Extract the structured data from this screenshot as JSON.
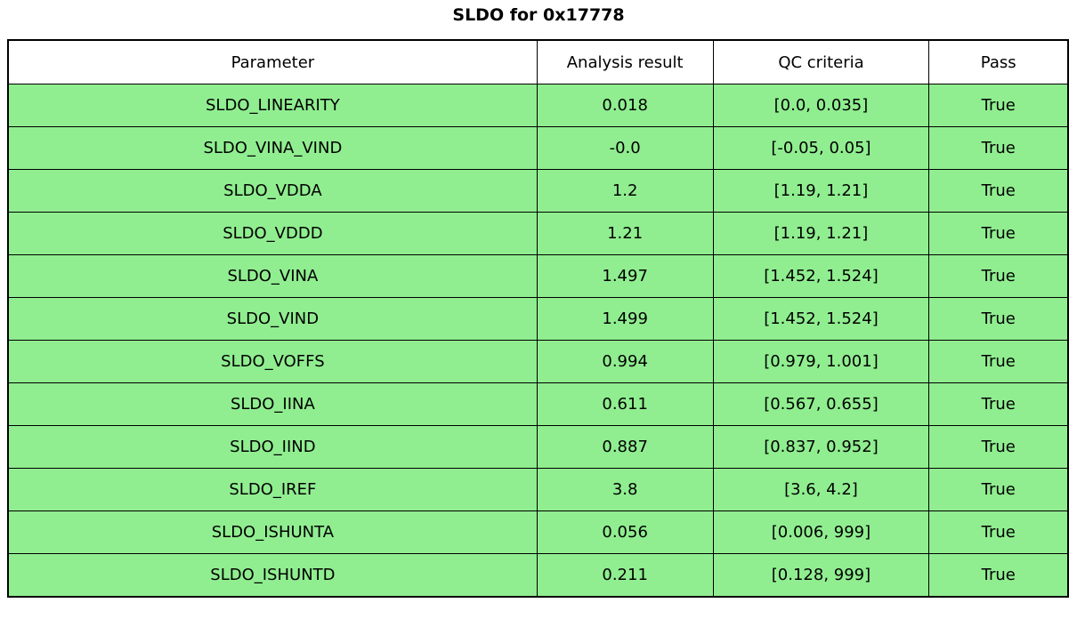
{
  "title": "SLDO for 0x17778",
  "colors": {
    "pass_row": "#90ee90",
    "header_bg": "#ffffff",
    "border": "#000000",
    "text": "#000000"
  },
  "chart_data": {
    "type": "table",
    "title": "SLDO for 0x17778",
    "columns": [
      "Parameter",
      "Analysis result",
      "QC criteria",
      "Pass"
    ],
    "rows": [
      [
        "SLDO_LINEARITY",
        "0.018",
        "[0.0, 0.035]",
        "True"
      ],
      [
        "SLDO_VINA_VIND",
        "-0.0",
        "[-0.05, 0.05]",
        "True"
      ],
      [
        "SLDO_VDDA",
        "1.2",
        "[1.19, 1.21]",
        "True"
      ],
      [
        "SLDO_VDDD",
        "1.21",
        "[1.19, 1.21]",
        "True"
      ],
      [
        "SLDO_VINA",
        "1.497",
        "[1.452, 1.524]",
        "True"
      ],
      [
        "SLDO_VIND",
        "1.499",
        "[1.452, 1.524]",
        "True"
      ],
      [
        "SLDO_VOFFS",
        "0.994",
        "[0.979, 1.001]",
        "True"
      ],
      [
        "SLDO_IINA",
        "0.611",
        "[0.567, 0.655]",
        "True"
      ],
      [
        "SLDO_IIND",
        "0.887",
        "[0.837, 0.952]",
        "True"
      ],
      [
        "SLDO_IREF",
        "3.8",
        "[3.6, 4.2]",
        "True"
      ],
      [
        "SLDO_ISHUNTA",
        "0.056",
        "[0.006, 999]",
        "True"
      ],
      [
        "SLDO_ISHUNTD",
        "0.211",
        "[0.128, 999]",
        "True"
      ]
    ],
    "row_status": [
      "pass",
      "pass",
      "pass",
      "pass",
      "pass",
      "pass",
      "pass",
      "pass",
      "pass",
      "pass",
      "pass",
      "pass"
    ],
    "layout": {
      "all_cells_centered": true,
      "header_background": "white",
      "pass_row_background": "lightgreen"
    }
  }
}
